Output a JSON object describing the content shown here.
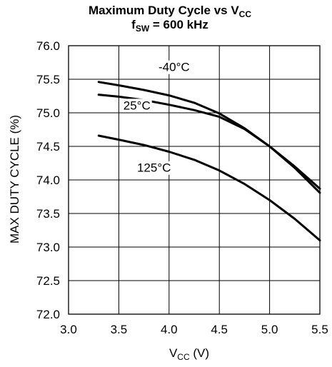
{
  "chart_data": {
    "type": "line",
    "title": {
      "line1_main": "Maximum Duty Cycle vs V",
      "line1_sub": "CC",
      "line2_main": "f",
      "line2_sub": "SW",
      "line2_rest": " = 600 kHz"
    },
    "xlabel": {
      "main": "V",
      "sub": "CC",
      "rest": " (V)"
    },
    "ylabel": "MAX DUTY CYCLE (%)",
    "xlim": [
      3.0,
      5.5
    ],
    "ylim": [
      72.0,
      76.0
    ],
    "xticks": [
      "3.0",
      "3.5",
      "4.0",
      "4.5",
      "5.0",
      "5.5"
    ],
    "yticks": [
      "72.0",
      "72.5",
      "73.0",
      "73.5",
      "74.0",
      "74.5",
      "75.0",
      "75.5",
      "76.0"
    ],
    "grid": true,
    "series": [
      {
        "name": "-40°C",
        "x": [
          3.3,
          3.5,
          3.75,
          4.0,
          4.25,
          4.5,
          4.75,
          5.0,
          5.25,
          5.5
        ],
        "y": [
          75.46,
          75.41,
          75.34,
          75.26,
          75.15,
          74.99,
          74.77,
          74.5,
          74.18,
          73.81
        ]
      },
      {
        "name": "25°C",
        "x": [
          3.3,
          3.5,
          3.75,
          4.0,
          4.25,
          4.5,
          4.75,
          5.0,
          5.25,
          5.5
        ],
        "y": [
          75.27,
          75.24,
          75.19,
          75.12,
          75.04,
          74.94,
          74.76,
          74.5,
          74.2,
          73.87
        ]
      },
      {
        "name": "125°C",
        "x": [
          3.3,
          3.5,
          3.75,
          4.0,
          4.25,
          4.5,
          4.75,
          5.0,
          5.25,
          5.5
        ],
        "y": [
          74.66,
          74.6,
          74.52,
          74.42,
          74.3,
          74.14,
          73.94,
          73.7,
          73.42,
          73.1
        ]
      }
    ]
  }
}
